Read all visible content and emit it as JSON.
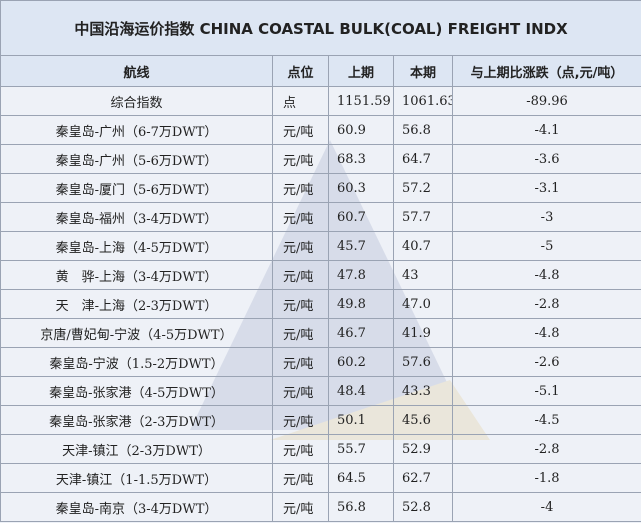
{
  "title": "中国沿海运价指数 CHINA COASTAL BULK(COAL) FREIGHT INDX",
  "table": {
    "header": [
      "航线",
      "点位",
      "上期",
      "本期",
      "与上期比涨跌（点,元/吨）"
    ],
    "rows": [
      [
        "综合指数",
        "点",
        "1151.59",
        "1061.63",
        "-89.96"
      ],
      [
        "秦皇岛-广州（6-7万DWT）",
        "元/吨",
        "60.9",
        "56.8",
        "-4.1"
      ],
      [
        "秦皇岛-广州（5-6万DWT）",
        "元/吨",
        "68.3",
        "64.7",
        "-3.6"
      ],
      [
        "秦皇岛-厦门（5-6万DWT）",
        "元/吨",
        "60.3",
        "57.2",
        "-3.1"
      ],
      [
        "秦皇岛-福州（3-4万DWT）",
        "元/吨",
        "60.7",
        "57.7",
        "-3"
      ],
      [
        "秦皇岛-上海（4-5万DWT）",
        "元/吨",
        "45.7",
        "40.7",
        "-5"
      ],
      [
        "黄　骅-上海（3-4万DWT）",
        "元/吨",
        "47.8",
        "43",
        "-4.8"
      ],
      [
        "天　津-上海（2-3万DWT）",
        "元/吨",
        "49.8",
        "47.0",
        "-2.8"
      ],
      [
        "京唐/曹妃甸-宁波（4-5万DWT）",
        "元/吨",
        "46.7",
        "41.9",
        "-4.8"
      ],
      [
        "秦皇岛-宁波（1.5-2万DWT）",
        "元/吨",
        "60.2",
        "57.6",
        "-2.6"
      ],
      [
        "秦皇岛-张家港（4-5万DWT）",
        "元/吨",
        "48.4",
        "43.3",
        "-5.1"
      ],
      [
        "秦皇岛-张家港（2-3万DWT）",
        "元/吨",
        "50.1",
        "45.6",
        "-4.5"
      ],
      [
        "天津-镇江（2-3万DWT）",
        "元/吨",
        "55.7",
        "52.9",
        "-2.8"
      ],
      [
        "天津-镇江（1-1.5万DWT）",
        "元/吨",
        "64.5",
        "62.7",
        "-1.8"
      ],
      [
        "秦皇岛-南京（3-4万DWT）",
        "元/吨",
        "56.8",
        "52.8",
        "-4"
      ]
    ]
  }
}
